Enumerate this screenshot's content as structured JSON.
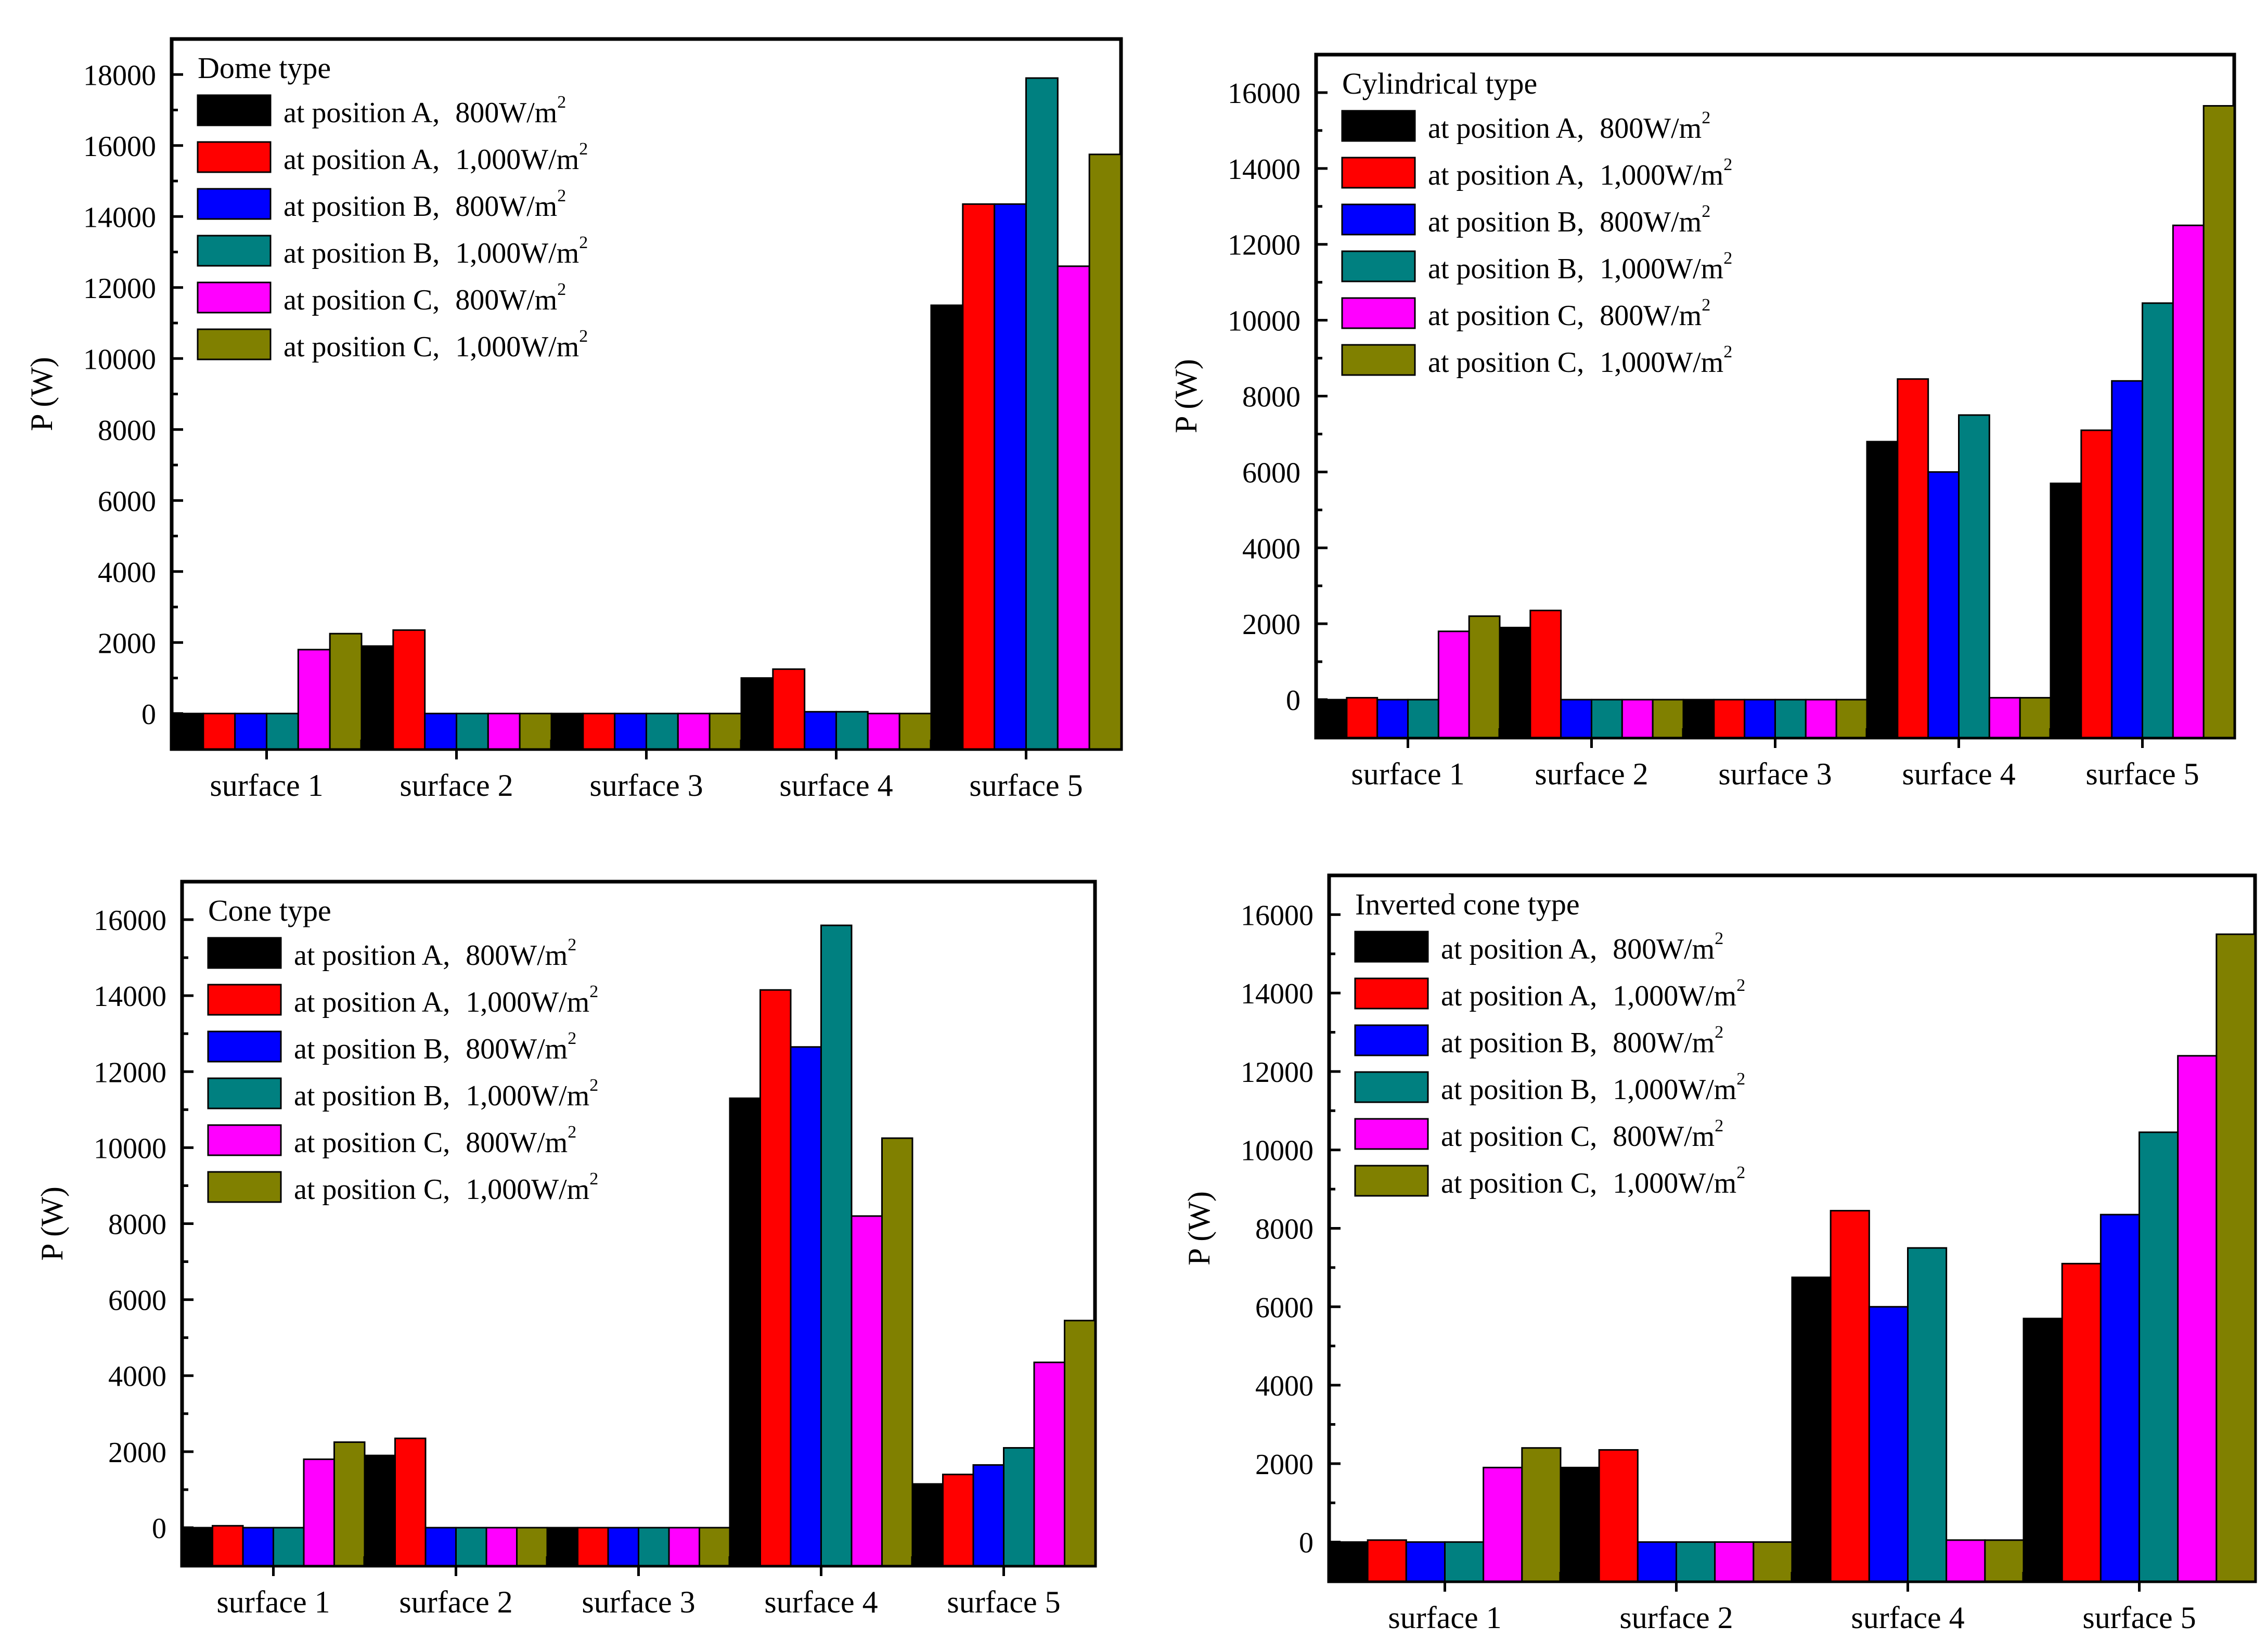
{
  "figure": {
    "panel_count": 4
  },
  "series_colors": [
    "#000000",
    "#ff0000",
    "#0000ff",
    "#008080",
    "#ff00ff",
    "#808000"
  ],
  "legend": [
    {
      "pos": "at position A,",
      "irr": "800W/m",
      "sup": "2"
    },
    {
      "pos": "at position A,",
      "irr": "1,000W/m",
      "sup": "2"
    },
    {
      "pos": "at position B,",
      "irr": "800W/m",
      "sup": "2"
    },
    {
      "pos": "at position B,",
      "irr": "1,000W/m",
      "sup": "2"
    },
    {
      "pos": "at position C,",
      "irr": "800W/m",
      "sup": "2"
    },
    {
      "pos": "at position C,",
      "irr": "1,000W/m",
      "sup": "2"
    }
  ],
  "chart_data": [
    {
      "type": "bar",
      "title": "Dome type",
      "xlabel": "",
      "ylabel": "P (W)",
      "ylim": [
        -1000,
        19000
      ],
      "yticks": [
        0,
        2000,
        4000,
        6000,
        8000,
        10000,
        12000,
        14000,
        16000,
        18000
      ],
      "ytick_labels": [
        "0",
        "2000",
        "4000",
        "6000",
        "8000",
        "10000",
        "12000",
        "14000",
        "16000",
        "18000"
      ],
      "legend_position": "top-left",
      "categories": [
        "surface 1",
        "surface 2",
        "surface 3",
        "surface 4",
        "surface 5"
      ],
      "series": [
        {
          "name": "at position A, 800W/m2",
          "values": [
            0,
            1900,
            0,
            1000,
            11500
          ]
        },
        {
          "name": "at position A, 1,000W/m2",
          "values": [
            0,
            2350,
            0,
            1250,
            14350
          ]
        },
        {
          "name": "at position B, 800W/m2",
          "values": [
            0,
            0,
            0,
            50,
            14350
          ]
        },
        {
          "name": "at position B, 1,000W/m2",
          "values": [
            0,
            0,
            0,
            50,
            17900
          ]
        },
        {
          "name": "at position C, 800W/m2",
          "values": [
            1800,
            0,
            0,
            0,
            12600
          ]
        },
        {
          "name": "at position C, 1,000W/m2",
          "values": [
            2250,
            0,
            0,
            0,
            15750
          ]
        }
      ]
    },
    {
      "type": "bar",
      "title": "Cylindrical type",
      "xlabel": "",
      "ylabel": "P (W)",
      "ylim": [
        -1000,
        17000
      ],
      "yticks": [
        0,
        2000,
        4000,
        6000,
        8000,
        10000,
        12000,
        14000,
        16000
      ],
      "ytick_labels": [
        "0",
        "2000",
        "4000",
        "6000",
        "8000",
        "10000",
        "12000",
        "14000",
        "16000"
      ],
      "legend_position": "top-left",
      "categories": [
        "surface 1",
        "surface 2",
        "surface 3",
        "surface 4",
        "surface 5"
      ],
      "series": [
        {
          "name": "at position A, 800W/m2",
          "values": [
            0,
            1900,
            0,
            6800,
            5700
          ]
        },
        {
          "name": "at position A, 1,000W/m2",
          "values": [
            50,
            2350,
            0,
            8450,
            7100
          ]
        },
        {
          "name": "at position B, 800W/m2",
          "values": [
            0,
            0,
            0,
            6000,
            8400
          ]
        },
        {
          "name": "at position B, 1,000W/m2",
          "values": [
            0,
            0,
            0,
            7500,
            10450
          ]
        },
        {
          "name": "at position C, 800W/m2",
          "values": [
            1800,
            0,
            0,
            50,
            12500
          ]
        },
        {
          "name": "at position C, 1,000W/m2",
          "values": [
            2200,
            0,
            0,
            50,
            15650
          ]
        }
      ]
    },
    {
      "type": "bar",
      "title": "Cone type",
      "xlabel": "",
      "ylabel": "P (W)",
      "ylim": [
        -1000,
        17000
      ],
      "yticks": [
        0,
        2000,
        4000,
        6000,
        8000,
        10000,
        12000,
        14000,
        16000
      ],
      "ytick_labels": [
        "0",
        "2000",
        "4000",
        "6000",
        "8000",
        "10000",
        "12000",
        "14000",
        "16000"
      ],
      "legend_position": "top-left",
      "categories": [
        "surface 1",
        "surface 2",
        "surface 3",
        "surface 4",
        "surface 5"
      ],
      "series": [
        {
          "name": "at position A, 800W/m2",
          "values": [
            0,
            1900,
            0,
            11300,
            1150
          ]
        },
        {
          "name": "at position A, 1,000W/m2",
          "values": [
            50,
            2350,
            0,
            14150,
            1400
          ]
        },
        {
          "name": "at position B, 800W/m2",
          "values": [
            0,
            0,
            0,
            12650,
            1650
          ]
        },
        {
          "name": "at position B, 1,000W/m2",
          "values": [
            0,
            0,
            0,
            15850,
            2100
          ]
        },
        {
          "name": "at position C, 800W/m2",
          "values": [
            1800,
            0,
            0,
            8200,
            4350
          ]
        },
        {
          "name": "at position C, 1,000W/m2",
          "values": [
            2250,
            0,
            0,
            10250,
            5450
          ]
        }
      ]
    },
    {
      "type": "bar",
      "title": "Inverted cone type",
      "xlabel": "",
      "ylabel": "P (W)",
      "ylim": [
        -1000,
        17000
      ],
      "yticks": [
        0,
        2000,
        4000,
        6000,
        8000,
        10000,
        12000,
        14000,
        16000
      ],
      "ytick_labels": [
        "0",
        "2000",
        "4000",
        "6000",
        "8000",
        "10000",
        "12000",
        "14000",
        "16000"
      ],
      "legend_position": "top-left",
      "categories": [
        "surface 1",
        "surface 2",
        "surface 4",
        "surface 5"
      ],
      "series": [
        {
          "name": "at position A, 800W/m2",
          "values": [
            0,
            1900,
            6750,
            5700
          ]
        },
        {
          "name": "at position A, 1,000W/m2",
          "values": [
            50,
            2350,
            8450,
            7100
          ]
        },
        {
          "name": "at position B, 800W/m2",
          "values": [
            0,
            0,
            6000,
            8350
          ]
        },
        {
          "name": "at position B, 1,000W/m2",
          "values": [
            0,
            0,
            7500,
            10450
          ]
        },
        {
          "name": "at position C, 800W/m2",
          "values": [
            1900,
            0,
            50,
            12400
          ]
        },
        {
          "name": "at position C, 1,000W/m2",
          "values": [
            2400,
            0,
            50,
            15500
          ]
        }
      ]
    }
  ]
}
